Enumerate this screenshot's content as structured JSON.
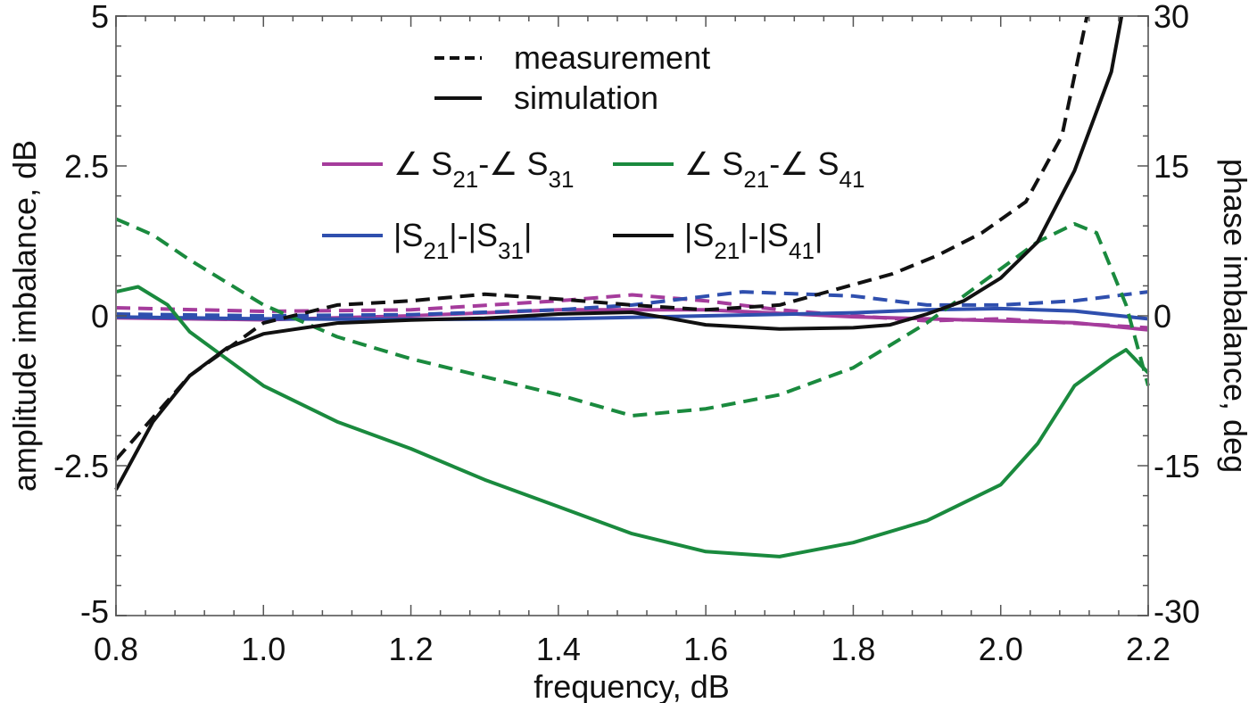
{
  "chart_data": {
    "type": "line",
    "xlabel": "frequency, dB",
    "ylabel_left": "amplitude imbalance, dB",
    "ylabel_right": "phase imbalance, deg",
    "xlim": [
      0.8,
      2.2
    ],
    "ylim_left": [
      -5,
      5
    ],
    "ylim_right": [
      -30,
      30
    ],
    "x_ticks": [
      "0.8",
      "1.0",
      "1.2",
      "1.4",
      "1.6",
      "1.8",
      "2.0",
      "2.2"
    ],
    "y_ticks_left": [
      "5",
      "2.5",
      "0",
      "-2.5",
      "-5"
    ],
    "y_ticks_right": [
      "30",
      "15",
      "0",
      "-15",
      "-30"
    ],
    "grid": false,
    "legend_style": [
      {
        "label": "measurement",
        "dash": "dashed"
      },
      {
        "label": "simulation",
        "dash": "solid"
      }
    ],
    "legend_series": [
      {
        "angle": "∠",
        "a": "S",
        "a_sub": "21",
        "mid": "-∠ ",
        "b": "S",
        "b_sub": "31",
        "end": "",
        "color": "#a53c9c"
      },
      {
        "angle": "∠",
        "a": "S",
        "a_sub": "21",
        "mid": "-∠ ",
        "b": "S",
        "b_sub": "41",
        "end": "",
        "color": "#1a8a3e"
      },
      {
        "angle": "",
        "a": "|S",
        "a_sub": "21",
        "mid": "|-|",
        "b": "S",
        "b_sub": "31",
        "end": "|",
        "color": "#2f4fae"
      },
      {
        "angle": "",
        "a": "|S",
        "a_sub": "21",
        "mid": "|-|",
        "b": "S",
        "b_sub": "41",
        "end": "|",
        "color": "#111111"
      }
    ],
    "series": [
      {
        "id": "phase31-meas",
        "axis": "right",
        "color": "#a53c9c",
        "dash": "dashed",
        "x": [
          0.8,
          1.0,
          1.2,
          1.4,
          1.5,
          1.6,
          1.7,
          1.8,
          1.9,
          2.0,
          2.2
        ],
        "y": [
          0.8,
          0.45,
          0.6,
          1.5,
          2.1,
          1.5,
          0.6,
          0,
          -0.5,
          -0.3,
          -1.2
        ]
      },
      {
        "id": "phase31-sim",
        "axis": "right",
        "color": "#a53c9c",
        "dash": "solid",
        "x": [
          0.8,
          1.0,
          1.2,
          1.4,
          1.6,
          1.8,
          2.0,
          2.1,
          2.2
        ],
        "y": [
          -0.2,
          -0.4,
          0,
          0.6,
          0.6,
          -0.1,
          -0.5,
          -0.7,
          -1.4
        ]
      },
      {
        "id": "amp31-meas",
        "axis": "left",
        "color": "#2f4fae",
        "dash": "dashed",
        "x": [
          0.8,
          1.0,
          1.2,
          1.4,
          1.5,
          1.65,
          1.8,
          1.9,
          2.0,
          2.1,
          2.2
        ],
        "y": [
          0.03,
          0.0,
          0.02,
          0.1,
          0.18,
          0.4,
          0.33,
          0.18,
          0.18,
          0.25,
          0.4
        ]
      },
      {
        "id": "amp31-sim",
        "axis": "left",
        "color": "#2f4fae",
        "dash": "solid",
        "x": [
          0.8,
          1.0,
          1.2,
          1.4,
          1.6,
          1.8,
          1.9,
          2.0,
          2.1,
          2.2
        ],
        "y": [
          -0.02,
          -0.05,
          -0.06,
          -0.05,
          0.0,
          0.05,
          0.1,
          0.12,
          0.08,
          -0.05
        ]
      },
      {
        "id": "phase41-meas",
        "axis": "right",
        "color": "#1a8a3e",
        "dash": "dashed",
        "x": [
          0.8,
          0.85,
          0.9,
          1.0,
          1.1,
          1.2,
          1.3,
          1.4,
          1.5,
          1.6,
          1.7,
          1.8,
          1.9,
          2.0,
          2.05,
          2.1,
          2.13,
          2.17,
          2.2
        ],
        "y": [
          9.7,
          8.1,
          5.6,
          1.1,
          -2.1,
          -4.3,
          -6.1,
          -7.9,
          -10.0,
          -9.3,
          -7.9,
          -5.2,
          -0.7,
          4.7,
          7.4,
          9.2,
          8.3,
          1.1,
          -7.0
        ]
      },
      {
        "id": "phase41-sim",
        "axis": "right",
        "color": "#1a8a3e",
        "dash": "solid",
        "x": [
          0.8,
          0.83,
          0.87,
          0.9,
          1.0,
          1.1,
          1.2,
          1.3,
          1.4,
          1.5,
          1.6,
          1.7,
          1.8,
          1.9,
          2.0,
          2.05,
          2.1,
          2.15,
          2.17,
          2.2
        ],
        "y": [
          2.4,
          2.9,
          1.1,
          -1.6,
          -7.0,
          -10.6,
          -13.3,
          -16.4,
          -19.1,
          -21.8,
          -23.6,
          -24.1,
          -22.7,
          -20.5,
          -16.9,
          -12.8,
          -7.0,
          -4.3,
          -3.4,
          -5.7
        ]
      },
      {
        "id": "amp41-meas",
        "axis": "left",
        "color": "#111111",
        "dash": "dashed",
        "x": [
          0.8,
          0.9,
          1.0,
          1.1,
          1.2,
          1.3,
          1.4,
          1.5,
          1.6,
          1.7,
          1.853,
          1.913,
          1.974,
          2.034,
          2.083,
          2.117
        ],
        "y": [
          -2.4,
          -1.0,
          -0.12,
          0.18,
          0.25,
          0.36,
          0.28,
          0.18,
          0.1,
          0.18,
          0.7,
          1.0,
          1.38,
          1.9,
          3.0,
          5.0
        ]
      },
      {
        "id": "amp41-sim",
        "axis": "left",
        "color": "#111111",
        "dash": "solid",
        "x": [
          0.8,
          0.85,
          0.9,
          0.95,
          1.0,
          1.1,
          1.2,
          1.3,
          1.4,
          1.5,
          1.55,
          1.6,
          1.7,
          1.8,
          1.85,
          1.9,
          1.95,
          2.0,
          2.05,
          2.1,
          2.15,
          2.164
        ],
        "y": [
          -2.9,
          -1.77,
          -1.0,
          -0.54,
          -0.3,
          -0.12,
          -0.07,
          -0.04,
          0.03,
          0.06,
          -0.04,
          -0.15,
          -0.22,
          -0.2,
          -0.15,
          0.03,
          0.25,
          0.63,
          1.23,
          2.42,
          4.07,
          5.0
        ]
      }
    ]
  }
}
